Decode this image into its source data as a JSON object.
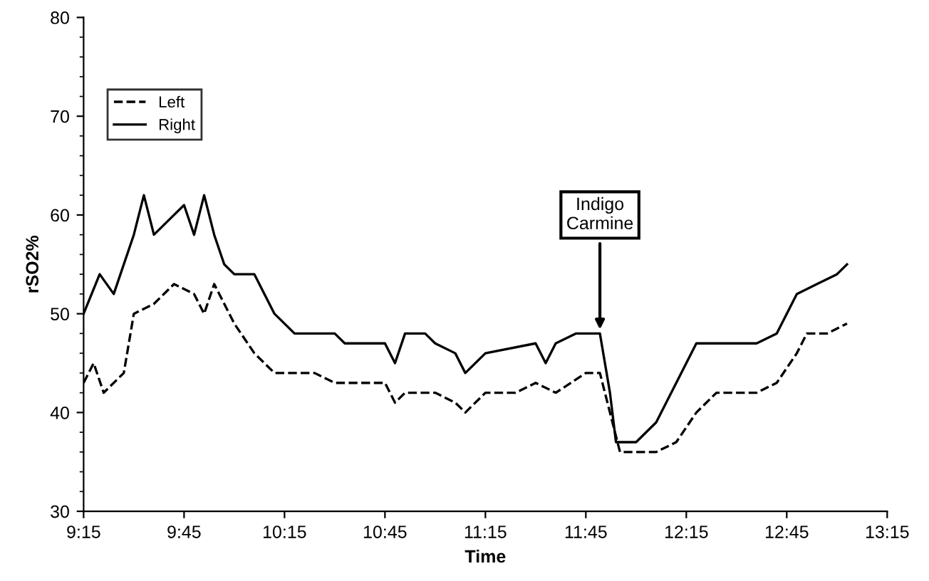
{
  "chart_data": {
    "type": "line",
    "xlabel": "Time",
    "ylabel": "rSO2%",
    "xlim": [
      9.25,
      13.25
    ],
    "xticks": [
      {
        "value": 9.25,
        "label": "9:15"
      },
      {
        "value": 9.75,
        "label": "9:45"
      },
      {
        "value": 10.25,
        "label": "10:15"
      },
      {
        "value": 10.75,
        "label": "10:45"
      },
      {
        "value": 11.25,
        "label": "11:15"
      },
      {
        "value": 11.75,
        "label": "11:45"
      },
      {
        "value": 12.25,
        "label": "12:15"
      },
      {
        "value": 12.75,
        "label": "12:45"
      },
      {
        "value": 13.25,
        "label": "13:15"
      }
    ],
    "ylim": [
      30,
      80
    ],
    "yticks": [
      30,
      40,
      50,
      60,
      70,
      80
    ],
    "grid": false,
    "legend": "top left",
    "series": [
      {
        "name": "Left",
        "color": "#000000",
        "line_style": "dashed",
        "x": [
          9.25,
          9.3,
          9.35,
          9.45,
          9.5,
          9.6,
          9.7,
          9.8,
          9.85,
          9.9,
          10.0,
          10.1,
          10.2,
          10.4,
          10.5,
          10.75,
          10.8,
          10.85,
          11.0,
          11.1,
          11.15,
          11.25,
          11.4,
          11.5,
          11.6,
          11.75,
          11.82,
          11.87,
          11.92,
          12.1,
          12.2,
          12.3,
          12.4,
          12.6,
          12.7,
          12.8,
          12.85,
          12.95,
          13.05
        ],
        "values": [
          43,
          45,
          42,
          44,
          50,
          51,
          53,
          52,
          50,
          53,
          49,
          46,
          44,
          44,
          43,
          43,
          41,
          42,
          42,
          41,
          40,
          42,
          42,
          43,
          42,
          44,
          44,
          40,
          36,
          36,
          37,
          40,
          42,
          42,
          43,
          46,
          48,
          48,
          49
        ]
      },
      {
        "name": "Right",
        "color": "#000000",
        "line_style": "solid",
        "x": [
          9.25,
          9.33,
          9.4,
          9.5,
          9.55,
          9.6,
          9.7,
          9.75,
          9.8,
          9.85,
          9.9,
          9.95,
          10.0,
          10.1,
          10.2,
          10.3,
          10.5,
          10.55,
          10.75,
          10.8,
          10.85,
          10.95,
          11.0,
          11.1,
          11.15,
          11.25,
          11.5,
          11.55,
          11.6,
          11.7,
          11.82,
          11.87,
          11.9,
          12.0,
          12.1,
          12.2,
          12.3,
          12.4,
          12.6,
          12.7,
          12.8,
          12.9,
          13.0,
          13.05
        ],
        "values": [
          50,
          54,
          52,
          58,
          62,
          58,
          60,
          61,
          58,
          62,
          58,
          55,
          54,
          54,
          50,
          48,
          48,
          47,
          47,
          45,
          48,
          48,
          47,
          46,
          44,
          46,
          47,
          45,
          47,
          48,
          48,
          42,
          37,
          37,
          39,
          43,
          47,
          47,
          47,
          48,
          52,
          53,
          54,
          55
        ]
      }
    ],
    "annotations": [
      {
        "text": "Indigo\nCarmine",
        "x": 11.82,
        "y": 48
      }
    ]
  }
}
